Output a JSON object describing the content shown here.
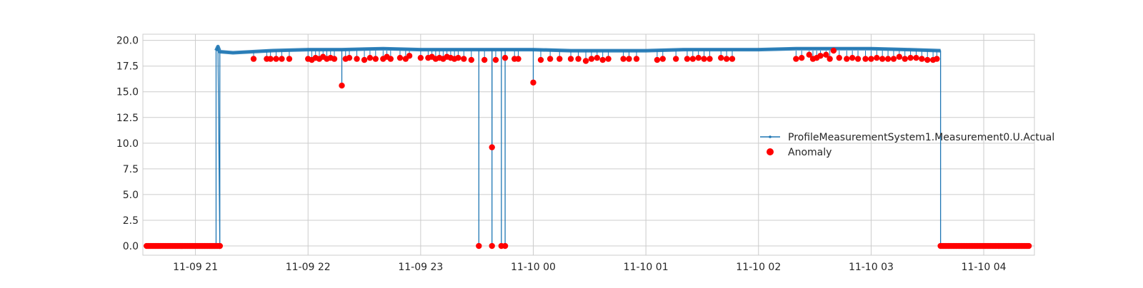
{
  "chart_data": {
    "type": "line",
    "style": "seaborn whitegrid",
    "grid": true,
    "legend_position": "center-right",
    "x_axis": {
      "type": "time",
      "range": [
        "2024-11-09 20:32",
        "2024-11-10 04:27"
      ],
      "ticks": [
        {
          "value": "2024-11-09 21:00",
          "label": "11-09 21"
        },
        {
          "value": "2024-11-09 22:00",
          "label": "11-09 22"
        },
        {
          "value": "2024-11-09 23:00",
          "label": "11-09 23"
        },
        {
          "value": "2024-11-10 00:00",
          "label": "11-10 00"
        },
        {
          "value": "2024-11-10 01:00",
          "label": "11-10 01"
        },
        {
          "value": "2024-11-10 02:00",
          "label": "11-10 02"
        },
        {
          "value": "2024-11-10 03:00",
          "label": "11-10 03"
        },
        {
          "value": "2024-11-10 04:00",
          "label": "11-10 04"
        }
      ]
    },
    "y_axis": {
      "range": [
        -0.9,
        20.6
      ],
      "ticks": [
        {
          "value": 0,
          "label": "0.0"
        },
        {
          "value": 2.5,
          "label": "2.5"
        },
        {
          "value": 5,
          "label": "5.0"
        },
        {
          "value": 7.5,
          "label": "7.5"
        },
        {
          "value": 10,
          "label": "10.0"
        },
        {
          "value": 12.5,
          "label": "12.5"
        },
        {
          "value": 15,
          "label": "15.0"
        },
        {
          "value": 17.5,
          "label": "17.5"
        },
        {
          "value": 20,
          "label": "20.0"
        }
      ]
    },
    "series": [
      {
        "name": "ProfileMeasurementSystem1.Measurement0.U.Actual",
        "kind": "line",
        "color": "#1f77b4",
        "points": [
          [
            "2024-11-09 21:11",
            0.0
          ],
          [
            "2024-11-09 21:11",
            19.0
          ],
          [
            "2024-11-09 21:12",
            19.4
          ],
          [
            "2024-11-09 21:13",
            0.0
          ],
          [
            "2024-11-09 21:13",
            18.9
          ],
          [
            "2024-11-09 21:20",
            18.8
          ],
          [
            "2024-11-09 21:40",
            19.0
          ],
          [
            "2024-11-09 22:00",
            19.1
          ],
          [
            "2024-11-09 22:18",
            19.1
          ],
          [
            "2024-11-09 22:18",
            15.6
          ],
          [
            "2024-11-09 22:18",
            19.1
          ],
          [
            "2024-11-09 22:40",
            19.2
          ],
          [
            "2024-11-09 23:00",
            19.1
          ],
          [
            "2024-11-09 23:20",
            19.1
          ],
          [
            "2024-11-09 23:31",
            19.1
          ],
          [
            "2024-11-09 23:31",
            0.0
          ],
          [
            "2024-11-09 23:31",
            19.1
          ],
          [
            "2024-11-09 23:38",
            19.1
          ],
          [
            "2024-11-09 23:38",
            0.0
          ],
          [
            "2024-11-09 23:38",
            9.6
          ],
          [
            "2024-11-09 23:38",
            19.1
          ],
          [
            "2024-11-09 23:43",
            19.1
          ],
          [
            "2024-11-09 23:43",
            0.0
          ],
          [
            "2024-11-09 23:43",
            19.1
          ],
          [
            "2024-11-09 23:45",
            19.1
          ],
          [
            "2024-11-09 23:45",
            0.0
          ],
          [
            "2024-11-09 23:45",
            19.1
          ],
          [
            "2024-11-10 00:00",
            19.1
          ],
          [
            "2024-11-10 00:00",
            15.9
          ],
          [
            "2024-11-10 00:00",
            19.1
          ],
          [
            "2024-11-10 00:20",
            19.0
          ],
          [
            "2024-11-10 00:40",
            19.0
          ],
          [
            "2024-11-10 01:00",
            19.0
          ],
          [
            "2024-11-10 01:20",
            19.1
          ],
          [
            "2024-11-10 01:40",
            19.1
          ],
          [
            "2024-11-10 02:00",
            19.1
          ],
          [
            "2024-11-10 02:20",
            19.2
          ],
          [
            "2024-11-10 02:40",
            19.2
          ],
          [
            "2024-11-10 03:00",
            19.2
          ],
          [
            "2024-11-10 03:20",
            19.1
          ],
          [
            "2024-11-10 03:37",
            19.0
          ],
          [
            "2024-11-10 03:37",
            0.0
          ]
        ]
      },
      {
        "name": "Anomaly",
        "kind": "scatter",
        "color": "#ff0000",
        "clusters": [
          {
            "from": "2024-11-09 20:34",
            "to": "2024-11-09 21:13",
            "value": 0.0,
            "count": 60
          },
          {
            "from": "2024-11-10 03:37",
            "to": "2024-11-10 04:24",
            "value": 0.0,
            "count": 70
          }
        ],
        "points": [
          [
            "2024-11-09 21:13",
            0.0
          ],
          [
            "2024-11-09 21:31",
            18.2
          ],
          [
            "2024-11-09 21:38",
            18.2
          ],
          [
            "2024-11-09 21:40",
            18.2
          ],
          [
            "2024-11-09 21:43",
            18.2
          ],
          [
            "2024-11-09 21:46",
            18.2
          ],
          [
            "2024-11-09 21:50",
            18.2
          ],
          [
            "2024-11-09 22:00",
            18.2
          ],
          [
            "2024-11-09 22:02",
            18.1
          ],
          [
            "2024-11-09 22:04",
            18.3
          ],
          [
            "2024-11-09 22:06",
            18.2
          ],
          [
            "2024-11-09 22:08",
            18.4
          ],
          [
            "2024-11-09 22:10",
            18.2
          ],
          [
            "2024-11-09 22:12",
            18.3
          ],
          [
            "2024-11-09 22:14",
            18.2
          ],
          [
            "2024-11-09 22:18",
            15.6
          ],
          [
            "2024-11-09 22:20",
            18.2
          ],
          [
            "2024-11-09 22:22",
            18.3
          ],
          [
            "2024-11-09 22:26",
            18.2
          ],
          [
            "2024-11-09 22:30",
            18.1
          ],
          [
            "2024-11-09 22:33",
            18.3
          ],
          [
            "2024-11-09 22:36",
            18.2
          ],
          [
            "2024-11-09 22:40",
            18.2
          ],
          [
            "2024-11-09 22:42",
            18.4
          ],
          [
            "2024-11-09 22:44",
            18.2
          ],
          [
            "2024-11-09 22:49",
            18.3
          ],
          [
            "2024-11-09 22:52",
            18.2
          ],
          [
            "2024-11-09 22:54",
            18.5
          ],
          [
            "2024-11-09 23:00",
            18.3
          ],
          [
            "2024-11-09 23:04",
            18.3
          ],
          [
            "2024-11-09 23:06",
            18.4
          ],
          [
            "2024-11-09 23:08",
            18.2
          ],
          [
            "2024-11-09 23:10",
            18.3
          ],
          [
            "2024-11-09 23:12",
            18.2
          ],
          [
            "2024-11-09 23:14",
            18.4
          ],
          [
            "2024-11-09 23:16",
            18.3
          ],
          [
            "2024-11-09 23:18",
            18.2
          ],
          [
            "2024-11-09 23:20",
            18.3
          ],
          [
            "2024-11-09 23:23",
            18.2
          ],
          [
            "2024-11-09 23:27",
            18.1
          ],
          [
            "2024-11-09 23:31",
            0.0
          ],
          [
            "2024-11-09 23:34",
            18.1
          ],
          [
            "2024-11-09 23:38",
            0.0
          ],
          [
            "2024-11-09 23:38",
            9.6
          ],
          [
            "2024-11-09 23:40",
            18.1
          ],
          [
            "2024-11-09 23:43",
            0.0
          ],
          [
            "2024-11-09 23:45",
            0.0
          ],
          [
            "2024-11-09 23:45",
            18.3
          ],
          [
            "2024-11-09 23:50",
            18.2
          ],
          [
            "2024-11-09 23:52",
            18.2
          ],
          [
            "2024-11-10 00:00",
            15.9
          ],
          [
            "2024-11-10 00:04",
            18.1
          ],
          [
            "2024-11-10 00:09",
            18.2
          ],
          [
            "2024-11-10 00:14",
            18.2
          ],
          [
            "2024-11-10 00:20",
            18.2
          ],
          [
            "2024-11-10 00:24",
            18.2
          ],
          [
            "2024-11-10 00:28",
            18.0
          ],
          [
            "2024-11-10 00:31",
            18.2
          ],
          [
            "2024-11-10 00:34",
            18.3
          ],
          [
            "2024-11-10 00:37",
            18.1
          ],
          [
            "2024-11-10 00:40",
            18.2
          ],
          [
            "2024-11-10 00:48",
            18.2
          ],
          [
            "2024-11-10 00:51",
            18.2
          ],
          [
            "2024-11-10 00:55",
            18.2
          ],
          [
            "2024-11-10 01:06",
            18.1
          ],
          [
            "2024-11-10 01:09",
            18.2
          ],
          [
            "2024-11-10 01:16",
            18.2
          ],
          [
            "2024-11-10 01:22",
            18.2
          ],
          [
            "2024-11-10 01:25",
            18.2
          ],
          [
            "2024-11-10 01:28",
            18.3
          ],
          [
            "2024-11-10 01:31",
            18.2
          ],
          [
            "2024-11-10 01:34",
            18.2
          ],
          [
            "2024-11-10 01:40",
            18.3
          ],
          [
            "2024-11-10 01:43",
            18.2
          ],
          [
            "2024-11-10 01:46",
            18.2
          ],
          [
            "2024-11-10 02:20",
            18.2
          ],
          [
            "2024-11-10 02:23",
            18.3
          ],
          [
            "2024-11-10 02:27",
            18.6
          ],
          [
            "2024-11-10 02:29",
            18.2
          ],
          [
            "2024-11-10 02:31",
            18.3
          ],
          [
            "2024-11-10 02:33",
            18.5
          ],
          [
            "2024-11-10 02:36",
            18.6
          ],
          [
            "2024-11-10 02:38",
            18.2
          ],
          [
            "2024-11-10 02:40",
            19.0
          ],
          [
            "2024-11-10 02:43",
            18.3
          ],
          [
            "2024-11-10 02:47",
            18.2
          ],
          [
            "2024-11-10 02:50",
            18.3
          ],
          [
            "2024-11-10 02:53",
            18.2
          ],
          [
            "2024-11-10 02:57",
            18.2
          ],
          [
            "2024-11-10 03:00",
            18.2
          ],
          [
            "2024-11-10 03:03",
            18.3
          ],
          [
            "2024-11-10 03:06",
            18.2
          ],
          [
            "2024-11-10 03:09",
            18.2
          ],
          [
            "2024-11-10 03:12",
            18.2
          ],
          [
            "2024-11-10 03:15",
            18.4
          ],
          [
            "2024-11-10 03:18",
            18.2
          ],
          [
            "2024-11-10 03:21",
            18.3
          ],
          [
            "2024-11-10 03:24",
            18.3
          ],
          [
            "2024-11-10 03:27",
            18.2
          ],
          [
            "2024-11-10 03:30",
            18.1
          ],
          [
            "2024-11-10 03:33",
            18.1
          ],
          [
            "2024-11-10 03:35",
            18.2
          ]
        ]
      }
    ]
  }
}
